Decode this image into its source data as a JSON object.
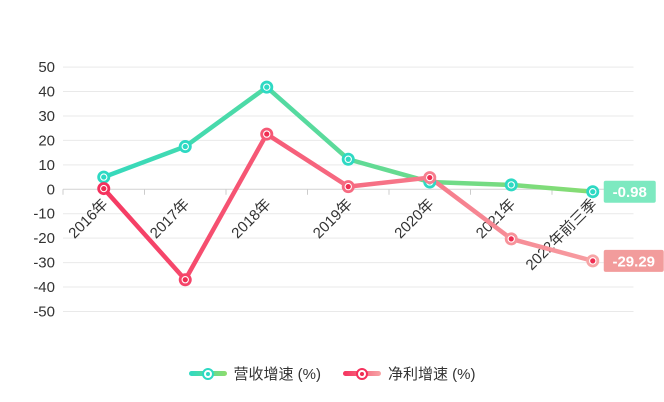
{
  "chart_data": {
    "type": "line",
    "categories": [
      "2016年",
      "2017年",
      "2018年",
      "2019年",
      "2020年",
      "2021年",
      "2022年前三季"
    ],
    "series": [
      {
        "name": "营收增速 (%)",
        "values": [
          5.0,
          17.5,
          41.8,
          12.3,
          3.0,
          1.8,
          -0.98
        ],
        "color_start": "#2ed9c3",
        "color_end": "#8edc6c",
        "marker_color": "#2ed9c3",
        "dot_color": "#2ed9c3",
        "marker_gradient": false,
        "end_label": "-0.98",
        "end_label_bg": "#7de9c0"
      },
      {
        "name": "净利增速 (%)",
        "values": [
          0.3,
          -37.0,
          22.6,
          1.1,
          4.8,
          -20.3,
          -29.29
        ],
        "color_start": "#f5315d",
        "color_end": "#f7a5a6",
        "marker_color": "#f5315d",
        "dot_color": "#ef2d51",
        "marker_gradient": true,
        "end_label": "-29.29",
        "end_label_bg": "#f29c9c"
      }
    ],
    "yticks": [
      50,
      40,
      30,
      20,
      10,
      0,
      -10,
      -20,
      -30,
      -40,
      -50
    ],
    "ylim": [
      -50,
      50
    ],
    "grid": true,
    "legend_position": "bottom",
    "title": "",
    "xlabel": "",
    "ylabel": ""
  },
  "style": {
    "grid_color": "#e9e9e9",
    "zero_line_color": "#d2d2d2",
    "axis_tick_color": "#cccccc",
    "axis_label_color": "#333333",
    "badge_text_color": "#ffffff",
    "background": "#ffffff"
  }
}
